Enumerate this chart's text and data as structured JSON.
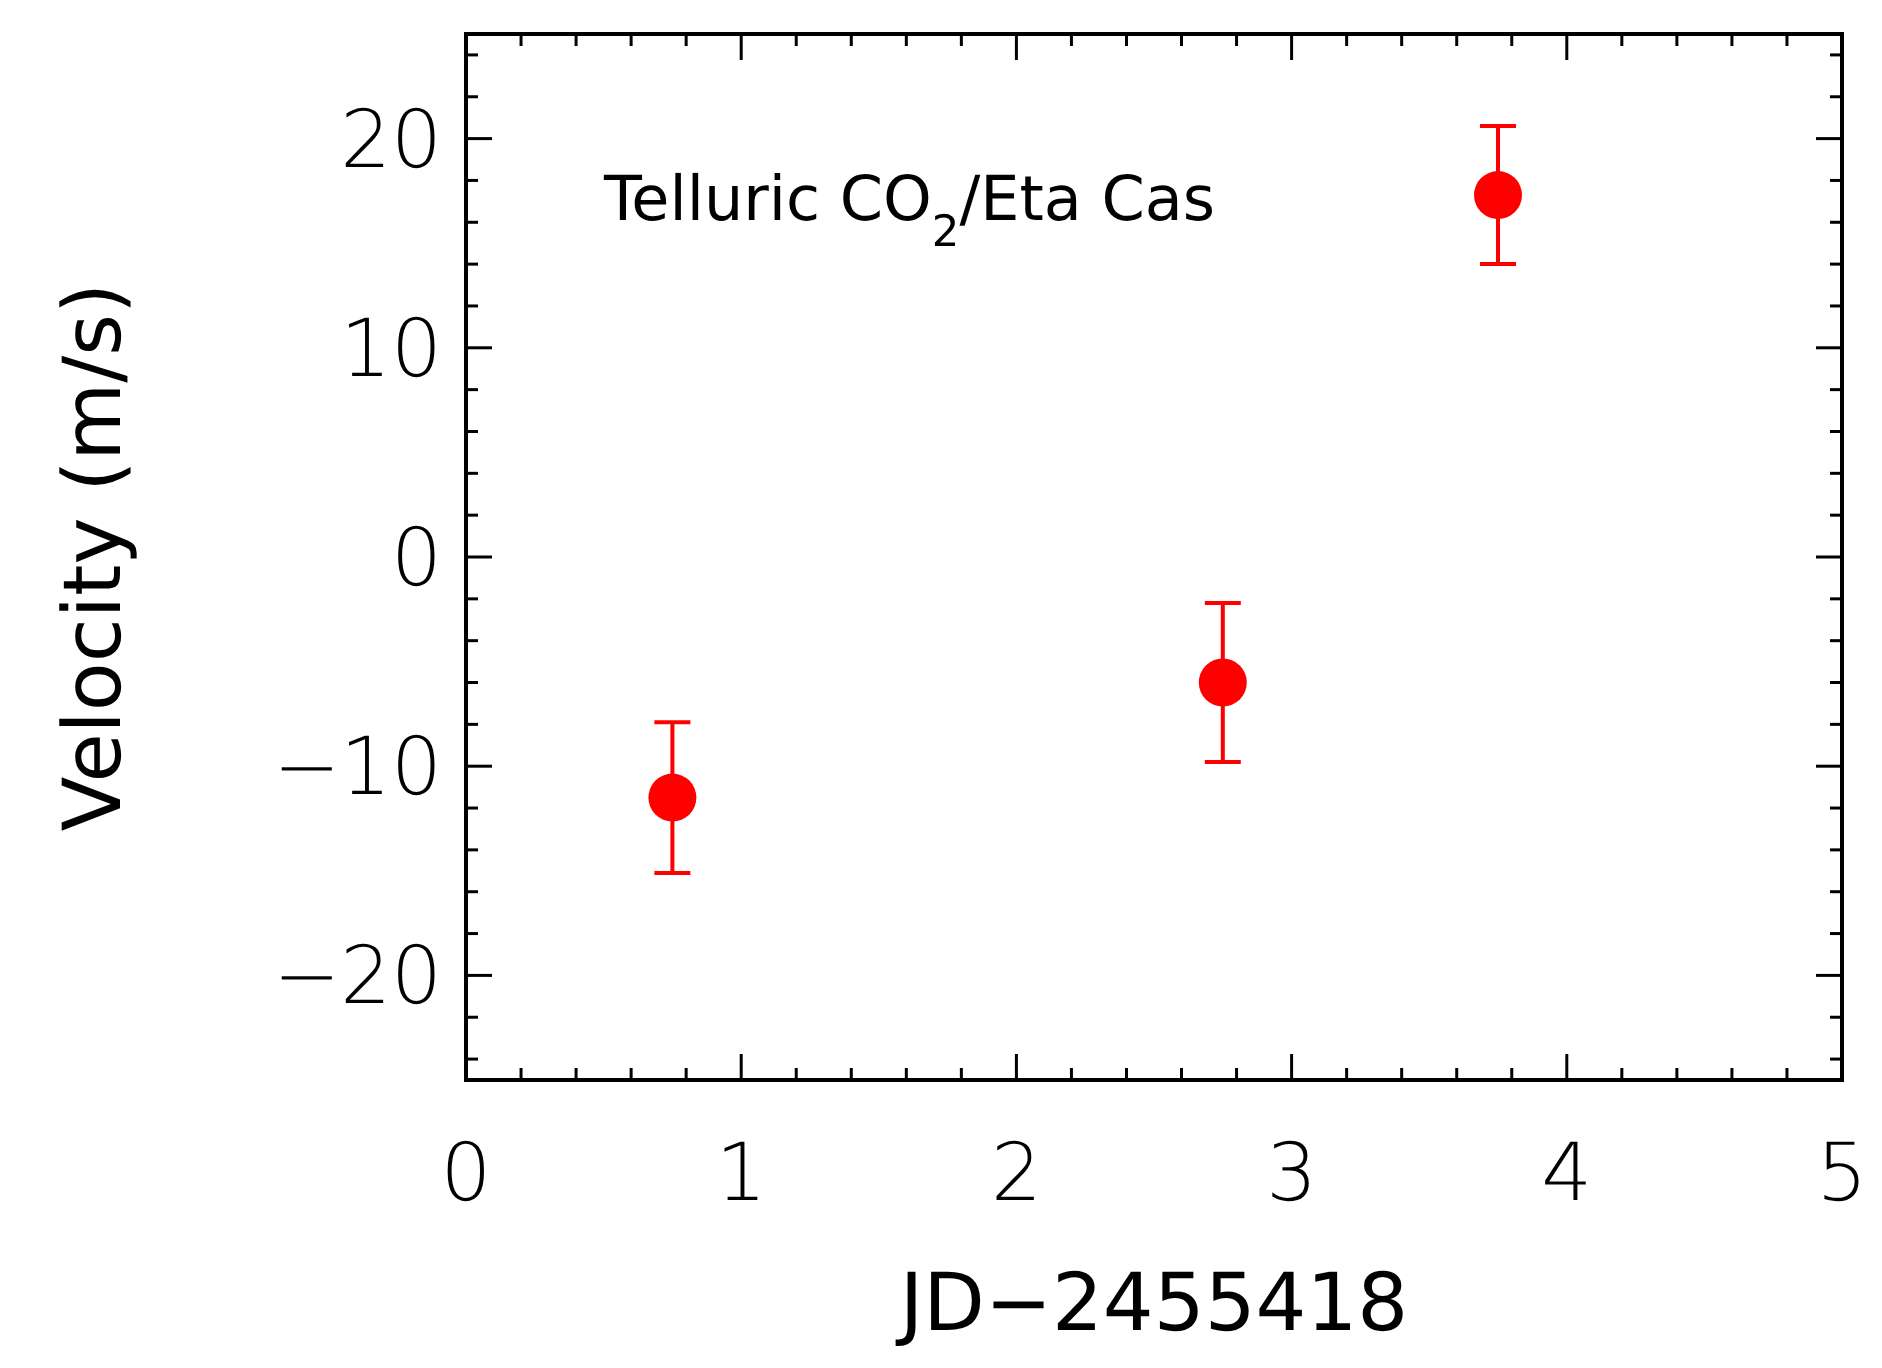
{
  "chart_data": {
    "type": "scatter",
    "xlabel": "JD−2455418",
    "ylabel": "Velocity (m/s)",
    "annotations": [
      "Telluric CO$_{2}$/Eta Cas"
    ],
    "x": [
      0.75,
      2.75,
      3.75
    ],
    "series": [
      {
        "color": "#ff0000",
        "values": [
          -11.5,
          -6,
          17.3
        ],
        "errors": [
          3.6,
          3.8,
          3.3
        ]
      }
    ],
    "marker": "circle",
    "grid": false,
    "xlim": [
      0,
      5
    ],
    "ylim": [
      -25,
      25
    ],
    "xticks": [
      0,
      {
        "value": 0.2,
        "label": null
      },
      {
        "value": 0.4,
        "label": null
      },
      {
        "value": 0.6,
        "label": null
      },
      {
        "value": 0.8,
        "label": null
      },
      1,
      {
        "value": 1.2,
        "label": null
      },
      {
        "value": 1.4,
        "label": null
      },
      {
        "value": 1.6,
        "label": null
      },
      {
        "value": 1.8,
        "label": null
      },
      2,
      {
        "value": 2.2,
        "label": null
      },
      {
        "value": 2.4,
        "label": null
      },
      {
        "value": 2.6,
        "label": null
      },
      {
        "value": 2.8,
        "label": null
      },
      3,
      {
        "value": 3.2,
        "label": null
      },
      {
        "value": 3.4,
        "label": null
      },
      {
        "value": 3.6,
        "label": null
      },
      {
        "value": 3.8,
        "label": null
      },
      4,
      {
        "value": 4.2,
        "label": null
      },
      {
        "value": 4.4,
        "label": null
      },
      {
        "value": 4.6,
        "label": null
      },
      {
        "value": 4.8,
        "label": null
      },
      5
    ],
    "yticks": [
      {
        "value": -24,
        "label": null
      },
      {
        "value": -22,
        "label": null
      },
      {
        "value": -20,
        "label": "−20"
      },
      {
        "value": -18,
        "label": null
      },
      {
        "value": -16,
        "label": null
      },
      {
        "value": -14,
        "label": null
      },
      {
        "value": -12,
        "label": null
      },
      {
        "value": -10,
        "label": "−10"
      },
      {
        "value": -8,
        "label": null
      },
      {
        "value": -6,
        "label": null
      },
      {
        "value": -4,
        "label": null
      },
      {
        "value": -2,
        "label": null
      },
      0,
      {
        "value": 2,
        "label": null
      },
      {
        "value": 4,
        "label": null
      },
      {
        "value": 6,
        "label": null
      },
      {
        "value": 8,
        "label": null
      },
      10,
      {
        "value": 12,
        "label": null
      },
      {
        "value": 14,
        "label": null
      },
      {
        "value": 16,
        "label": null
      },
      {
        "value": 18,
        "label": null
      },
      20,
      {
        "value": 22,
        "label": null
      },
      {
        "value": 24,
        "label": null
      }
    ]
  }
}
